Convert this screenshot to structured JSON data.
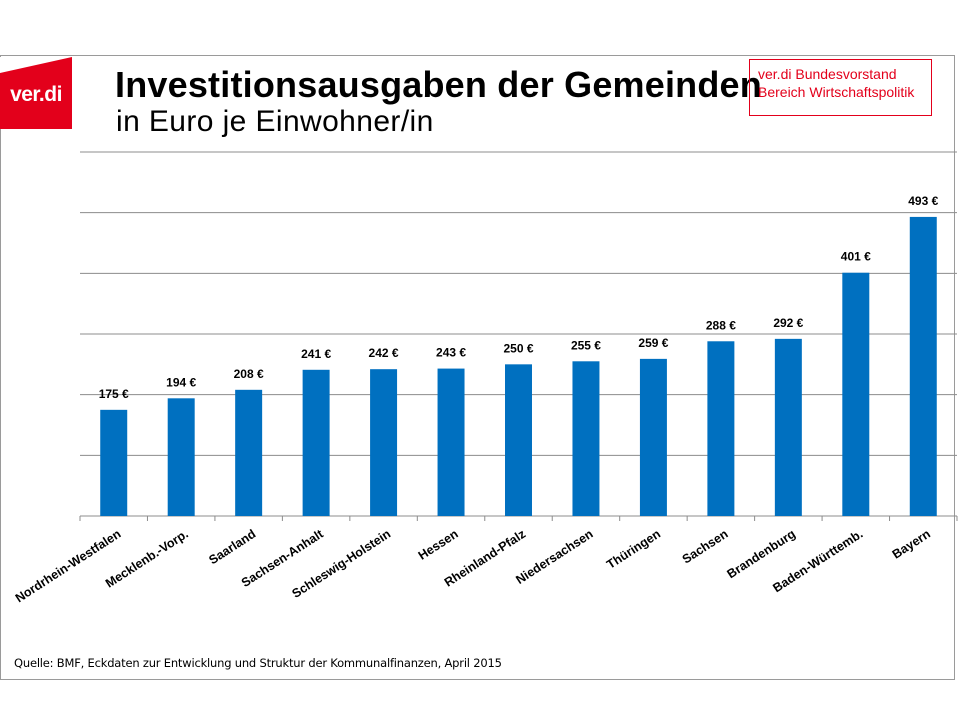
{
  "logo": {
    "text": "ver.di",
    "color": "#e3001b"
  },
  "header": {
    "title": "Investitionsausgaben der Gemeinden",
    "subtitle": "in Euro je Einwohner/in"
  },
  "infobox": {
    "line1": "ver.di Bundesvorstand",
    "line2": "Bereich Wirtschaftspolitik",
    "color": "#e3001b"
  },
  "source": "Quelle: BMF, Eckdaten zur Entwicklung und Struktur der Kommunalfinanzen, April 2015",
  "chart_data": {
    "type": "bar",
    "categories": [
      "Nordrhein-Westfalen",
      "Mecklenb.-Vorp.",
      "Saarland",
      "Sachsen-Anhalt",
      "Schleswig-Holstein",
      "Hessen",
      "Rheinland-Pfalz",
      "Niedersachsen",
      "Thüringen",
      "Sachsen",
      "Brandenburg",
      "Baden-Württemb.",
      "Bayern"
    ],
    "values": [
      175,
      194,
      208,
      241,
      242,
      243,
      250,
      255,
      259,
      288,
      292,
      401,
      493
    ],
    "data_labels": [
      "175 €",
      "194 €",
      "208 €",
      "241 €",
      "242 €",
      "243 €",
      "250 €",
      "255 €",
      "259 €",
      "288 €",
      "292 €",
      "401 €",
      "493 €"
    ],
    "ylim": [
      0,
      600
    ],
    "ytick_step": 100,
    "grid": true,
    "bar_color": "#0070c0",
    "xlabel": "",
    "ylabel": ""
  }
}
